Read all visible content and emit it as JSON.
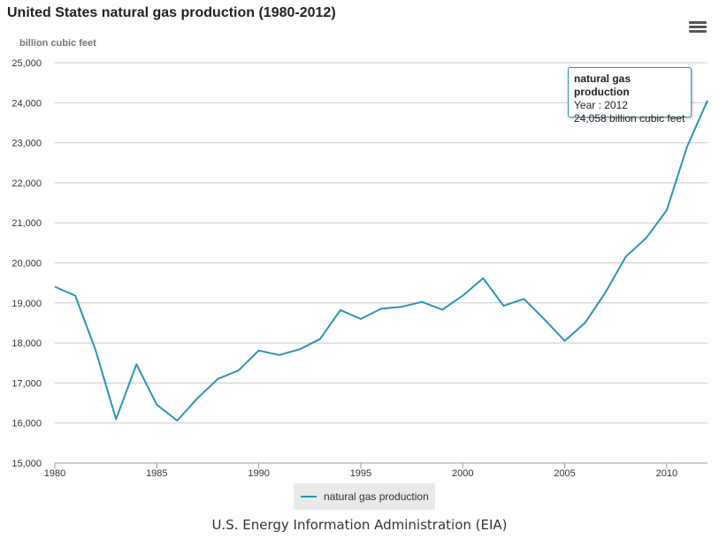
{
  "title": "United States natural gas production (1980-2012)",
  "unit_label": "billion cubic feet",
  "source": "U.S. Energy Information Administration (EIA)",
  "colors": {
    "series": "#2b94b8",
    "grid": "#c8c8c8",
    "axis_text": "#333333"
  },
  "tooltip": {
    "title": "natural gas production",
    "line1": "Year : 2012",
    "line2": "24,058 billion cubic feet"
  },
  "menu_icon": "hamburger-menu-icon",
  "chart_data": {
    "type": "line",
    "title": "United States natural gas production (1980-2012)",
    "ylabel": "billion cubic feet",
    "xlabel": "",
    "xlim": [
      1980,
      2012
    ],
    "ylim": [
      15000,
      25000
    ],
    "grid": true,
    "legend_position": "bottom-center",
    "x_ticks": [
      1980,
      1985,
      1990,
      1995,
      2000,
      2005,
      2010
    ],
    "x_tick_labels": [
      "1980",
      "1985",
      "1990",
      "1995",
      "2000",
      "2005",
      "2010"
    ],
    "y_ticks": [
      15000,
      16000,
      17000,
      18000,
      19000,
      20000,
      21000,
      22000,
      23000,
      24000,
      25000
    ],
    "y_tick_labels": [
      "15,000",
      "16,000",
      "17,000",
      "18,000",
      "19,000",
      "20,000",
      "21,000",
      "22,000",
      "23,000",
      "24,000",
      "25,000"
    ],
    "series": [
      {
        "name": "natural gas production",
        "x": [
          1980,
          1981,
          1982,
          1983,
          1984,
          1985,
          1986,
          1987,
          1988,
          1989,
          1990,
          1991,
          1992,
          1993,
          1994,
          1995,
          1996,
          1997,
          1998,
          1999,
          2000,
          2001,
          2002,
          2003,
          2004,
          2005,
          2006,
          2007,
          2008,
          2009,
          2010,
          2011,
          2012
        ],
        "values": [
          19403,
          19181,
          17820,
          16094,
          17466,
          16454,
          16059,
          16621,
          17103,
          17311,
          17810,
          17698,
          17840,
          18095,
          18821,
          18599,
          18854,
          18902,
          19024,
          18832,
          19182,
          19616,
          18928,
          19099,
          18591,
          18051,
          18504,
          19266,
          20159,
          20624,
          21316,
          22902,
          24058
        ]
      }
    ]
  }
}
